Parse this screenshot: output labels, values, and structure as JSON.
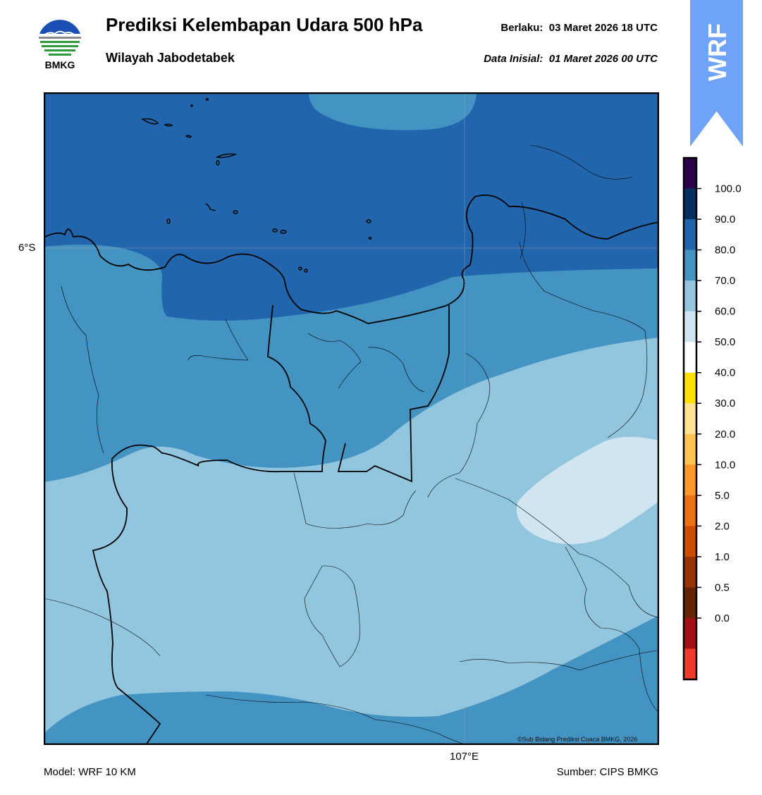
{
  "header": {
    "logo_text": "BMKG",
    "title": "Prediksi Kelembapan Udara 500 hPa",
    "subtitle": "Wilayah Jabodetabek",
    "valid_label": "Berlaku:",
    "valid_time": "03 Maret 2026 18 UTC",
    "init_label": "Data Inisial:",
    "init_time": "01 Maret 2026 00 UTC",
    "badge_text": "WRF",
    "badge_color": "#6fa3f7"
  },
  "map": {
    "lat_label": "6°S",
    "lon_label": "107°E",
    "credit": "©Sub Bidang Prediksi Cuaca BMKG, 2026",
    "fill_colors": {
      "80-90": "#2166ac",
      "70-80": "#4393c3",
      "60-70": "#92c5de",
      "50-60": "#d1e5f0"
    }
  },
  "colorbar": {
    "ticks": [
      "100.0",
      "90.0",
      "80.0",
      "70.0",
      "60.0",
      "50.0",
      "40.0",
      "30.0",
      "20.0",
      "10.0",
      "5.0",
      "2.0",
      "1.0",
      "0.5",
      "0.0"
    ],
    "colors_top_to_bottom": [
      "#2d004b",
      "#053061",
      "#2166ac",
      "#4393c3",
      "#92c5de",
      "#d1e5f0",
      "#ffffff",
      "#ffe000",
      "#fee391",
      "#fec44f",
      "#fe9929",
      "#ec7014",
      "#cc4c02",
      "#993404",
      "#662506",
      "#a50f15",
      "#ef3b2c"
    ]
  },
  "footer": {
    "model": "Model: WRF 10 KM",
    "source": "Sumber: CIPS BMKG"
  }
}
